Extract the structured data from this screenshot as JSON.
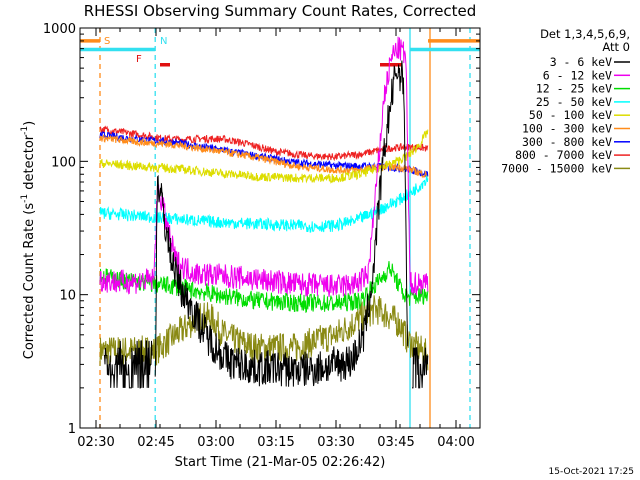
{
  "chart_data": {
    "type": "line",
    "title": "RHESSI Observing Summary Count Rates, Corrected",
    "xlabel": "Start Time (21-Mar-05 02:26:42)",
    "ylabel_main": "Corrected Count Rate (s",
    "ylabel_sup1": "-1",
    "ylabel_mid": " detector",
    "ylabel_sup2": "-1",
    "ylabel_end": ")",
    "y_scale": "log",
    "ylim": [
      1,
      1000
    ],
    "xlim_minutes": [
      146,
      246
    ],
    "x_ticks": [
      {
        "label": "02:30",
        "value": 150
      },
      {
        "label": "02:45",
        "value": 165
      },
      {
        "label": "03:00",
        "value": 180
      },
      {
        "label": "03:15",
        "value": 195
      },
      {
        "label": "03:30",
        "value": 210
      },
      {
        "label": "03:45",
        "value": 225
      },
      {
        "label": "04:00",
        "value": 240
      }
    ],
    "y_ticks": [
      {
        "label": "1",
        "value": 1
      },
      {
        "label": "10",
        "value": 10
      },
      {
        "label": "100",
        "value": 100
      },
      {
        "label": "1000",
        "value": 1000
      }
    ],
    "legend_header": [
      "Det 1,3,4,5,6,9,",
      "Att 0"
    ],
    "legend_placement": "right",
    "footer_date": "15-Oct-2021 17:25",
    "annotations": [
      {
        "label": "S",
        "x": 151,
        "color": "#ff8c1a"
      },
      {
        "label": "N",
        "x": 165,
        "color": "#33e0f0"
      },
      {
        "label": "F",
        "x": 166,
        "color": "#e01010"
      }
    ],
    "flags": [
      {
        "name": "saa",
        "color": "#ff8c1a",
        "segments": [
          [
            146,
            151
          ],
          [
            233,
            246
          ]
        ],
        "y": 800
      },
      {
        "name": "night",
        "color": "#33e0f0",
        "segments": [
          [
            146,
            164.8
          ],
          [
            228.5,
            246
          ]
        ],
        "y": 690
      },
      {
        "name": "flare",
        "color": "#e01010",
        "segments": [
          [
            166,
            168.5
          ],
          [
            221,
            226.5
          ]
        ],
        "y": 530
      }
    ],
    "vlines": [
      {
        "x": 151,
        "color": "#ff8c1a",
        "dash": true
      },
      {
        "x": 164.8,
        "color": "#33e0f0",
        "dash": true
      },
      {
        "x": 228.5,
        "color": "#33e0f0",
        "dash": false
      },
      {
        "x": 233.5,
        "color": "#ff8c1a",
        "dash": false
      },
      {
        "x": 243.5,
        "color": "#33e0f0",
        "dash": true
      }
    ],
    "series": [
      {
        "name": "3 - 6 keV",
        "color": "#000000",
        "noise": 0.06,
        "points": [
          [
            164.8,
            2.2
          ],
          [
            165.3,
            70
          ],
          [
            166,
            60
          ],
          [
            168,
            25
          ],
          [
            170,
            14
          ],
          [
            172,
            10
          ],
          [
            174,
            8
          ],
          [
            176,
            6
          ],
          [
            178,
            4.8
          ],
          [
            180,
            4
          ],
          [
            183,
            3.2
          ],
          [
            186,
            3
          ],
          [
            190,
            2.8
          ],
          [
            195,
            2.8
          ],
          [
            200,
            2.7
          ],
          [
            205,
            2.8
          ],
          [
            210,
            3
          ],
          [
            214,
            3.2
          ],
          [
            217,
            5
          ],
          [
            219,
            12
          ],
          [
            221,
            60
          ],
          [
            223,
            200
          ],
          [
            225,
            480
          ],
          [
            226,
            460
          ],
          [
            227,
            380
          ],
          [
            228,
            2.2
          ]
        ],
        "extra": [
          [
            229,
            2.5
          ],
          [
            230,
            3
          ],
          [
            231,
            2.2
          ],
          [
            232,
            2.8
          ],
          [
            233,
            2.5
          ]
        ],
        "pre": [
          [
            152,
            3
          ],
          [
            154,
            2.2
          ],
          [
            156,
            3.3
          ],
          [
            158,
            2
          ],
          [
            160,
            3
          ],
          [
            162,
            2.4
          ],
          [
            164,
            3.5
          ]
        ]
      },
      {
        "name": "6 - 12 keV",
        "color": "#ee00ee",
        "noise": 0.04,
        "points": [
          [
            151,
            13
          ],
          [
            155,
            12.5
          ],
          [
            160,
            12.5
          ],
          [
            164.5,
            13
          ],
          [
            165.3,
            60
          ],
          [
            166.5,
            50
          ],
          [
            168,
            30
          ],
          [
            170,
            18
          ],
          [
            172,
            16
          ],
          [
            175,
            14.5
          ],
          [
            180,
            14
          ],
          [
            190,
            13
          ],
          [
            200,
            12
          ],
          [
            210,
            11.5
          ],
          [
            215,
            12
          ],
          [
            218,
            14
          ],
          [
            220,
            60
          ],
          [
            222,
            300
          ],
          [
            224,
            620
          ],
          [
            225.5,
            700
          ],
          [
            226.5,
            680
          ],
          [
            227.5,
            600
          ],
          [
            228.5,
            12
          ],
          [
            233,
            12.5
          ]
        ]
      },
      {
        "name": "12 - 25 keV",
        "color": "#00dd00",
        "noise": 0.03,
        "points": [
          [
            151,
            14
          ],
          [
            155,
            13
          ],
          [
            160,
            12.5
          ],
          [
            165,
            12
          ],
          [
            170,
            11.5
          ],
          [
            180,
            10
          ],
          [
            190,
            9
          ],
          [
            200,
            8.7
          ],
          [
            210,
            8.6
          ],
          [
            216,
            9
          ],
          [
            220,
            12
          ],
          [
            222,
            14
          ],
          [
            223.5,
            16
          ],
          [
            225,
            13
          ],
          [
            227,
            10
          ],
          [
            228.5,
            9.5
          ],
          [
            233,
            10
          ]
        ]
      },
      {
        "name": "25 - 50 keV",
        "color": "#00ffff",
        "noise": 0.02,
        "points": [
          [
            151,
            41
          ],
          [
            160,
            39
          ],
          [
            165,
            38
          ],
          [
            170,
            37
          ],
          [
            180,
            35
          ],
          [
            190,
            34
          ],
          [
            200,
            33
          ],
          [
            205,
            32.5
          ],
          [
            210,
            33
          ],
          [
            215,
            36
          ],
          [
            220,
            42
          ],
          [
            225,
            50
          ],
          [
            228,
            56
          ],
          [
            231,
            66
          ],
          [
            233,
            76
          ]
        ]
      },
      {
        "name": "50 - 100 keV",
        "color": "#dddd00",
        "noise": 0.015,
        "points": [
          [
            151,
            97
          ],
          [
            160,
            92
          ],
          [
            170,
            88
          ],
          [
            180,
            82
          ],
          [
            190,
            77
          ],
          [
            200,
            75
          ],
          [
            210,
            75
          ],
          [
            216,
            80
          ],
          [
            220,
            88
          ],
          [
            224,
            96
          ],
          [
            228,
            110
          ],
          [
            231,
            135
          ],
          [
            233,
            170
          ]
        ]
      },
      {
        "name": "100 - 300 keV",
        "color": "#ff8c1a",
        "noise": 0.012,
        "points": [
          [
            151,
            150
          ],
          [
            160,
            140
          ],
          [
            170,
            133
          ],
          [
            180,
            120
          ],
          [
            190,
            107
          ],
          [
            200,
            92
          ],
          [
            210,
            86
          ],
          [
            216,
            86
          ],
          [
            220,
            90
          ],
          [
            224,
            91
          ],
          [
            228,
            88
          ],
          [
            231,
            82
          ],
          [
            233,
            78
          ]
        ]
      },
      {
        "name": "300 - 800 keV",
        "color": "#0000ff",
        "noise": 0.012,
        "points": [
          [
            151,
            158
          ],
          [
            160,
            147
          ],
          [
            170,
            138
          ],
          [
            180,
            124
          ],
          [
            190,
            110
          ],
          [
            200,
            98
          ],
          [
            210,
            93
          ],
          [
            216,
            92
          ],
          [
            220,
            92
          ],
          [
            224,
            90
          ],
          [
            228,
            87
          ],
          [
            231,
            83
          ],
          [
            233,
            80
          ]
        ]
      },
      {
        "name": "800 - 7000 keV",
        "color": "#ee2222",
        "noise": 0.012,
        "points": [
          [
            151,
            175
          ],
          [
            160,
            160
          ],
          [
            167,
            148
          ],
          [
            172,
            146
          ],
          [
            177,
            148
          ],
          [
            182,
            147
          ],
          [
            188,
            135
          ],
          [
            195,
            118
          ],
          [
            203,
            110
          ],
          [
            210,
            108
          ],
          [
            216,
            113
          ],
          [
            220,
            120
          ],
          [
            224,
            126
          ],
          [
            228,
            128
          ],
          [
            231,
            127
          ],
          [
            233,
            124
          ]
        ]
      },
      {
        "name": "7000 - 15000 keV",
        "color": "#8a8a14",
        "noise": 0.05,
        "points": [
          [
            151,
            3.8
          ],
          [
            160,
            3.8
          ],
          [
            165,
            3.8
          ],
          [
            168,
            4.5
          ],
          [
            172,
            5.5
          ],
          [
            176,
            7
          ],
          [
            179,
            6.6
          ],
          [
            182,
            5
          ],
          [
            185,
            4.5
          ],
          [
            190,
            4
          ],
          [
            195,
            4
          ],
          [
            200,
            4
          ],
          [
            205,
            4.5
          ],
          [
            210,
            5
          ],
          [
            214,
            6
          ],
          [
            217,
            7
          ],
          [
            220,
            7.8
          ],
          [
            223,
            7
          ],
          [
            226,
            6
          ],
          [
            228,
            4.5
          ],
          [
            233,
            3.5
          ]
        ]
      }
    ]
  }
}
